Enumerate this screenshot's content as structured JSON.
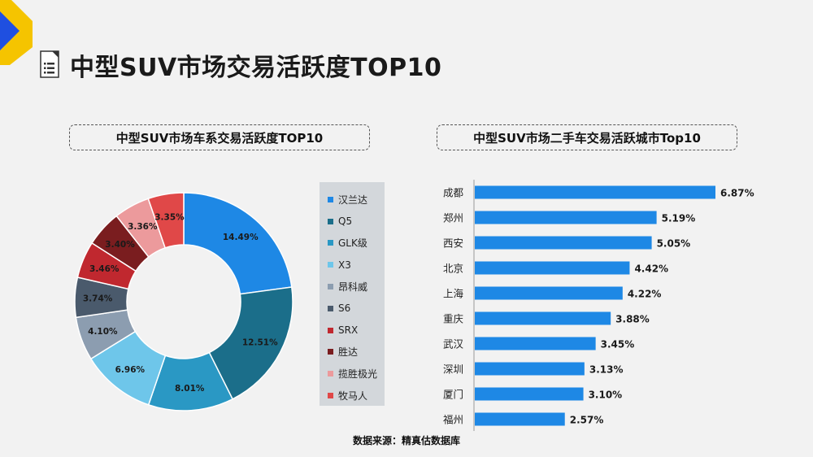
{
  "page": {
    "title": "中型SUV市场交易活跃度TOP10",
    "source": "数据来源：精真估数据库"
  },
  "colors": {
    "accent_yellow": "#f5c400",
    "accent_blue": "#1f4fe0",
    "bar_blue": "#1e88e5"
  },
  "chart_data": [
    {
      "type": "pie",
      "variant": "donut",
      "title": "中型SUV市场车系交易活跃度TOP10",
      "categories": [
        "汉兰达",
        "Q5",
        "GLK级",
        "X3",
        "昂科威",
        "S6",
        "SRX",
        "胜达",
        "揽胜极光",
        "牧马人"
      ],
      "values": [
        14.49,
        12.51,
        8.01,
        6.96,
        4.1,
        3.74,
        3.46,
        3.4,
        3.36,
        3.35
      ],
      "value_labels": [
        "14.49%",
        "12.51%",
        "8.01%",
        "6.96%",
        "4.10%",
        "3.74%",
        "3.46%",
        "3.40%",
        "3.36%",
        "3.35%"
      ],
      "colors": [
        "#1e88e5",
        "#1b6e8a",
        "#2a98c4",
        "#6ec6ea",
        "#8c9db0",
        "#4a5a6c",
        "#c0282f",
        "#7a1d1f",
        "#ec9a9c",
        "#e04848"
      ],
      "legend_position": "right"
    },
    {
      "type": "bar",
      "orientation": "horizontal",
      "title": "中型SUV市场二手车交易活跃城市Top10",
      "categories": [
        "成都",
        "郑州",
        "西安",
        "北京",
        "上海",
        "重庆",
        "武汉",
        "深圳",
        "厦门",
        "福州"
      ],
      "values": [
        6.87,
        5.19,
        5.05,
        4.42,
        4.22,
        3.88,
        3.45,
        3.13,
        3.1,
        2.57
      ],
      "value_labels": [
        "6.87%",
        "5.19%",
        "5.05%",
        "4.42%",
        "4.22%",
        "3.88%",
        "3.45%",
        "3.13%",
        "3.10%",
        "2.57%"
      ],
      "xlim": [
        0,
        7.3
      ],
      "grid": false
    }
  ]
}
